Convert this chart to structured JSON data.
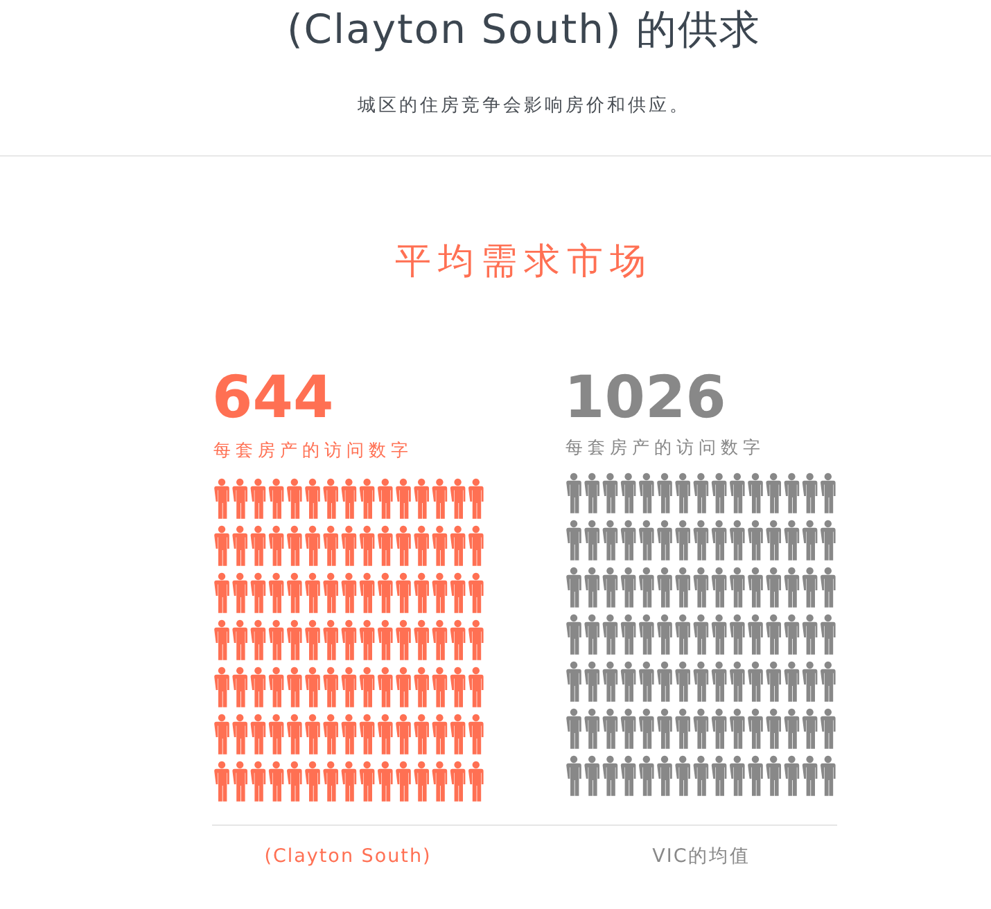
{
  "chart_data": {
    "type": "other",
    "title": "(Clayton South) 的供求",
    "subtitle": "城区的住房竞争会影响房价和供应。",
    "categories": [
      "(Clayton South)",
      "VIC的均值"
    ],
    "values": [
      644,
      1026
    ],
    "colors": [
      "#ff7053",
      "#888888"
    ],
    "data_labels": true,
    "annotations": [
      "平均需求市场",
      "每套房产的访问数字",
      "每套房产的访问数字"
    ]
  }
}
